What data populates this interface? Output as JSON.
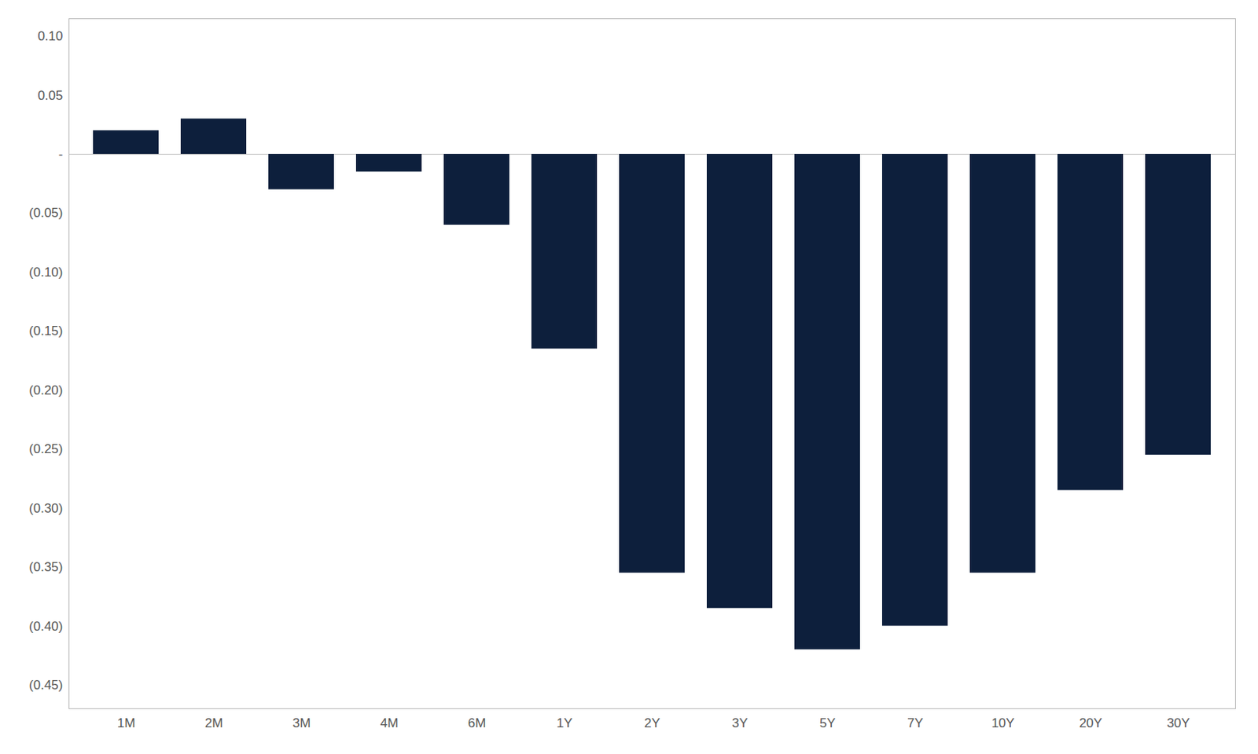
{
  "chart_data": {
    "type": "bar",
    "categories": [
      "1M",
      "2M",
      "3M",
      "4M",
      "6M",
      "1Y",
      "2Y",
      "3Y",
      "5Y",
      "7Y",
      "10Y",
      "20Y",
      "30Y"
    ],
    "values": [
      0.02,
      0.03,
      -0.03,
      -0.015,
      -0.06,
      -0.165,
      -0.355,
      -0.385,
      -0.42,
      -0.4,
      -0.355,
      -0.285,
      -0.255
    ],
    "color": "#0d1f3c",
    "ylim": [
      -0.47,
      0.115
    ],
    "yticks": [
      {
        "value": 0.1,
        "label": "0.10"
      },
      0.05,
      {
        "value": 0.0,
        "label": "-"
      },
      {
        "value": -0.05,
        "label": "(0.05)"
      },
      {
        "value": -0.1,
        "label": "(0.10)"
      },
      {
        "value": -0.15,
        "label": "(0.15)"
      },
      {
        "value": -0.2,
        "label": "(0.20)"
      },
      {
        "value": -0.25,
        "label": "(0.25)"
      },
      {
        "value": -0.3,
        "label": "(0.30)"
      },
      {
        "value": -0.35,
        "label": "(0.35)"
      },
      {
        "value": -0.4,
        "label": "(0.40)"
      },
      {
        "value": -0.45,
        "label": "(0.45)"
      }
    ],
    "grid": false
  }
}
